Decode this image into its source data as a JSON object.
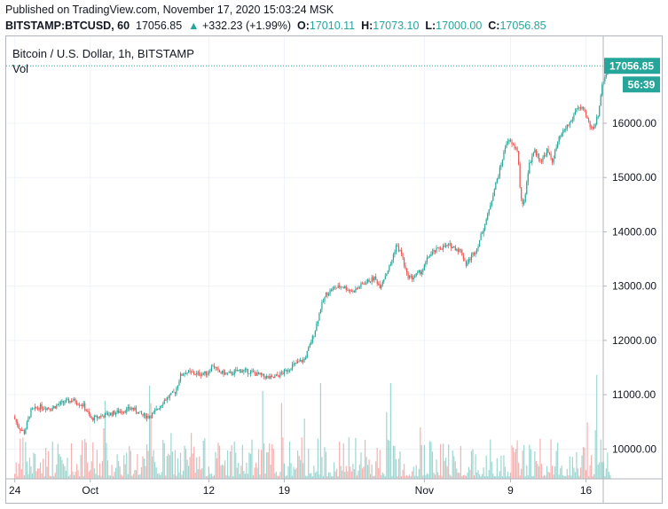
{
  "header": {
    "published": "Published on TradingView.com, November 17, 2020 15:03:24 MSK",
    "symbol": "BITSTAMP:BTCUSD, 60",
    "last": "17056.85",
    "arrow": "▲",
    "change": "+332.23 (+1.99%)",
    "o_label": "O:",
    "o_value": "17010.11",
    "h_label": "H:",
    "h_value": "17073.10",
    "l_label": "L:",
    "l_value": "17000.00",
    "c_label": "C:",
    "c_value": "17056.85"
  },
  "legend": {
    "title": "Bitcoin / U.S. Dollar, 1h, BITSTAMP",
    "volume": "Vol"
  },
  "price_axis": {
    "last_price_tag": "17056.85",
    "countdown_tag": "56:39"
  },
  "colors": {
    "up": "#26a69a",
    "down": "#ef5350",
    "grid": "#f0f3fa",
    "last_line": "#26a69a"
  },
  "chart_data": {
    "type": "candlestick",
    "title": "Bitcoin / U.S. Dollar, 1h, BITSTAMP",
    "y_ticks": [
      "10000.00",
      "11000.00",
      "12000.00",
      "13000.00",
      "14000.00",
      "15000.00",
      "16000.00"
    ],
    "y_tick_values": [
      10000,
      11000,
      12000,
      13000,
      14000,
      15000,
      16000
    ],
    "ylim": [
      9450,
      17600
    ],
    "x_ticks": [
      "24",
      "Oct",
      "12",
      "19",
      "Nov",
      "9",
      "16"
    ],
    "x_tick_days": [
      0,
      7,
      18,
      25,
      38,
      46,
      53
    ],
    "xlim_days": [
      -0.8,
      54.6
    ],
    "last_price": 17056.85,
    "price_path": [
      [
        0,
        10600
      ],
      [
        0.5,
        10400
      ],
      [
        1,
        10300
      ],
      [
        1.6,
        10700
      ],
      [
        2.5,
        10780
      ],
      [
        3.5,
        10750
      ],
      [
        4.5,
        10850
      ],
      [
        5.5,
        10900
      ],
      [
        6.5,
        10800
      ],
      [
        7.2,
        10550
      ],
      [
        8,
        10600
      ],
      [
        9,
        10650
      ],
      [
        10,
        10700
      ],
      [
        11,
        10750
      ],
      [
        12,
        10620
      ],
      [
        12.5,
        10600
      ],
      [
        13,
        10650
      ],
      [
        14,
        10900
      ],
      [
        15,
        11050
      ],
      [
        15.5,
        11350
      ],
      [
        16,
        11420
      ],
      [
        17,
        11380
      ],
      [
        18,
        11400
      ],
      [
        18.5,
        11550
      ],
      [
        19,
        11420
      ],
      [
        20,
        11380
      ],
      [
        21,
        11450
      ],
      [
        22,
        11420
      ],
      [
        23,
        11350
      ],
      [
        24,
        11300
      ],
      [
        25,
        11400
      ],
      [
        26,
        11550
      ],
      [
        27,
        11650
      ],
      [
        27.5,
        11900
      ],
      [
        28,
        12200
      ],
      [
        28.5,
        12600
      ],
      [
        29,
        12850
      ],
      [
        29.6,
        12950
      ],
      [
        30.5,
        13000
      ],
      [
        31.5,
        12900
      ],
      [
        32.5,
        13050
      ],
      [
        33.5,
        13150
      ],
      [
        34,
        13000
      ],
      [
        35,
        13400
      ],
      [
        35.5,
        13750
      ],
      [
        36,
        13600
      ],
      [
        36.5,
        13200
      ],
      [
        37,
        13150
      ],
      [
        38,
        13300
      ],
      [
        38.5,
        13550
      ],
      [
        39.5,
        13700
      ],
      [
        40.5,
        13750
      ],
      [
        41.5,
        13650
      ],
      [
        42,
        13400
      ],
      [
        42.5,
        13550
      ],
      [
        43,
        13700
      ],
      [
        43.5,
        14000
      ],
      [
        44,
        14300
      ],
      [
        44.5,
        14700
      ],
      [
        45.2,
        15200
      ],
      [
        45.8,
        15700
      ],
      [
        46.3,
        15600
      ],
      [
        46.8,
        15500
      ],
      [
        47,
        14800
      ],
      [
        47.3,
        14400
      ],
      [
        47.8,
        15200
      ],
      [
        48.3,
        15500
      ],
      [
        49,
        15300
      ],
      [
        49.5,
        15500
      ],
      [
        50,
        15300
      ],
      [
        50.6,
        15700
      ],
      [
        51.2,
        15900
      ],
      [
        51.8,
        16050
      ],
      [
        52.3,
        16300
      ],
      [
        52.8,
        16250
      ],
      [
        53.2,
        16100
      ],
      [
        53.6,
        15900
      ],
      [
        54,
        16000
      ],
      [
        54.3,
        16200
      ],
      [
        54.6,
        16700
      ],
      [
        54.95,
        16900
      ],
      [
        55.3,
        17056
      ]
    ]
  }
}
